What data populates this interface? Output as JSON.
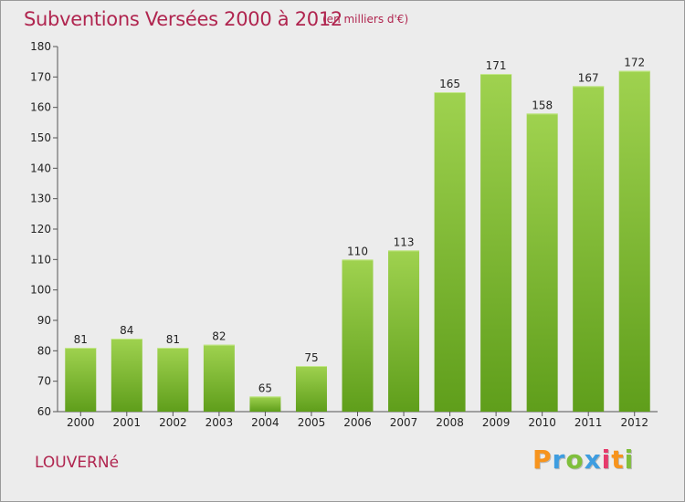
{
  "title": "Subventions Versées 2000 à 2012",
  "subtitle": "(en milliers d'€)",
  "place": "LOUVERNé",
  "logo": {
    "letters": [
      "P",
      "r",
      "o",
      "x",
      "i",
      "t",
      "i"
    ],
    "colors": [
      "#f7941d",
      "#3e9de0",
      "#7fbf3c",
      "#3e9de0",
      "#e63a6b",
      "#f7941d",
      "#7fbf3c"
    ]
  },
  "colors": {
    "bar_light": "#9fd24f",
    "bar_dark": "#5f9e1b",
    "title": "#b0254f"
  },
  "chart_data": {
    "type": "bar",
    "title": "Subventions Versées 2000 à 2012",
    "subtitle": "(en milliers d'€)",
    "categories": [
      "2000",
      "2001",
      "2002",
      "2003",
      "2004",
      "2005",
      "2006",
      "2007",
      "2008",
      "2009",
      "2010",
      "2011",
      "2012"
    ],
    "values": [
      81,
      84,
      81,
      82,
      65,
      75,
      110,
      113,
      165,
      171,
      158,
      167,
      172
    ],
    "ylim": [
      60,
      180
    ],
    "yticks": [
      60,
      70,
      80,
      90,
      100,
      110,
      120,
      130,
      140,
      150,
      160,
      170,
      180
    ],
    "xlabel": "",
    "ylabel": "",
    "grid": false,
    "legend": "none"
  }
}
